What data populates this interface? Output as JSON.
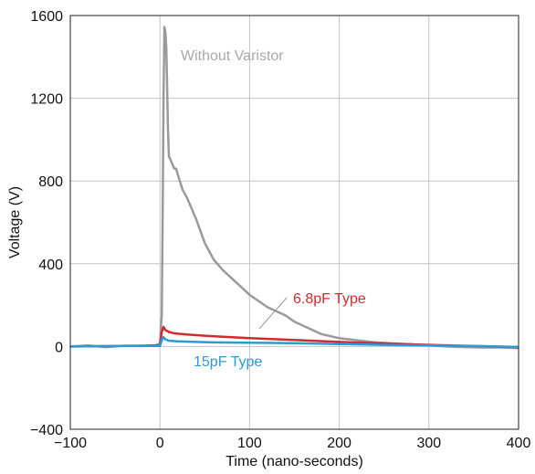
{
  "chart_data": {
    "type": "line",
    "title": "",
    "xlabel": "Time (nano-seconds)",
    "ylabel": "Voltage (V)",
    "xlim": [
      -100,
      400
    ],
    "ylim": [
      -400,
      1600
    ],
    "xticks": [
      -100,
      0,
      100,
      200,
      300,
      400
    ],
    "yticks": [
      -400,
      0,
      400,
      800,
      1200,
      1600
    ],
    "xtick_labels": [
      "−100",
      "0",
      "100",
      "200",
      "300",
      "400"
    ],
    "ytick_labels": [
      "−400",
      "0",
      "400",
      "800",
      "1200",
      "1600"
    ],
    "grid": true,
    "series": [
      {
        "name": "Without Varistor",
        "color": "#9a9a9a",
        "x": [
          -100,
          -80,
          -60,
          -40,
          -20,
          -5,
          0,
          2,
          3,
          4,
          5,
          6,
          7,
          8,
          9,
          10,
          12,
          14,
          16,
          18,
          20,
          25,
          30,
          35,
          40,
          45,
          50,
          60,
          70,
          80,
          90,
          100,
          110,
          120,
          130,
          140,
          150,
          160,
          170,
          180,
          200,
          220,
          240,
          260,
          280,
          300,
          320,
          340,
          360,
          380,
          400
        ],
        "y": [
          0,
          5,
          -3,
          4,
          2,
          6,
          15,
          150,
          600,
          1200,
          1545,
          1520,
          1450,
          1250,
          1050,
          920,
          900,
          880,
          860,
          860,
          830,
          760,
          720,
          670,
          620,
          560,
          500,
          420,
          370,
          330,
          290,
          250,
          220,
          190,
          170,
          150,
          120,
          100,
          80,
          60,
          40,
          30,
          20,
          15,
          10,
          5,
          0,
          -3,
          -5,
          -5,
          -8
        ]
      },
      {
        "name": "6.8pF Type",
        "color": "#d42a2f",
        "x": [
          -100,
          -50,
          0,
          2,
          4,
          6,
          10,
          15,
          20,
          30,
          50,
          80,
          100,
          150,
          200,
          250,
          300,
          350,
          400
        ],
        "y": [
          0,
          2,
          5,
          70,
          95,
          80,
          70,
          65,
          62,
          58,
          52,
          45,
          40,
          32,
          22,
          15,
          8,
          2,
          -3
        ]
      },
      {
        "name": "15pF Type",
        "color": "#2a9bd6",
        "x": [
          -100,
          -50,
          0,
          2,
          4,
          6,
          10,
          20,
          40,
          60,
          100,
          150,
          200,
          250,
          300,
          350,
          400
        ],
        "y": [
          0,
          2,
          3,
          30,
          45,
          35,
          28,
          25,
          22,
          20,
          18,
          16,
          12,
          8,
          5,
          2,
          -2
        ]
      }
    ],
    "annotations": [
      {
        "text": "Without Varistor",
        "color": "#a8a8a8"
      },
      {
        "text": "6.8pF Type",
        "color": "#d42a2f"
      },
      {
        "text": "15pF Type",
        "color": "#2a9bd6"
      }
    ]
  }
}
